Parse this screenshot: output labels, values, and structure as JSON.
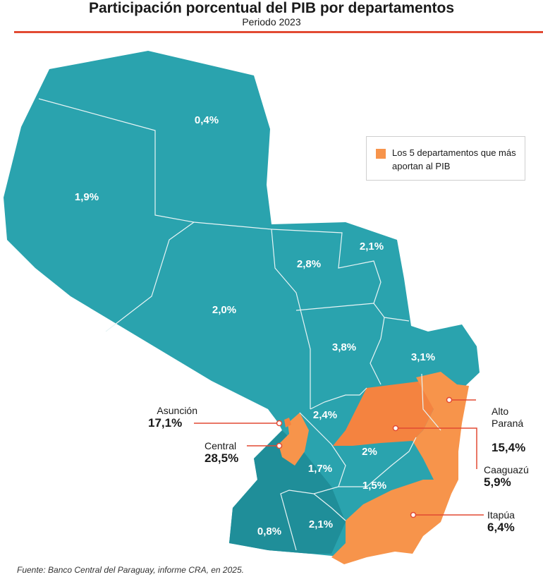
{
  "header": {
    "title": "Participación porcentual del PIB por departamentos",
    "subtitle": "Periodo 2023"
  },
  "legend": {
    "label": "Los 5 departamentos que más aportan al PIB",
    "color": "#f7944b"
  },
  "colors": {
    "base_teal": "#2aa3ae",
    "dark_teal": "#1f8e99",
    "highlight_orange": "#f7944b",
    "accent_red": "#e24a33"
  },
  "departments": {
    "alto_paraguay": "0,4%",
    "boqueron": "1,9%",
    "presidente_hayes": "2,0%",
    "concepcion": "2,8%",
    "amambay": "2,1%",
    "san_pedro": "3,8%",
    "canindeyu": "3,1%",
    "cordillera": "2,4%",
    "guaira": "2%",
    "paraguari": "1,7%",
    "caazapa": "1,5%",
    "neembucu": "0,8%",
    "misiones": "2,1%"
  },
  "callouts": {
    "asuncion": {
      "name": "Asunción",
      "value": "17,1%"
    },
    "central": {
      "name": "Central",
      "value": "28,5%"
    },
    "alto_parana": {
      "name": "Alto\nParaná",
      "value": "15,4%"
    },
    "caaguazu": {
      "name": "Caaguazú",
      "value": "5,9%"
    },
    "itapua": {
      "name": "Itapúa",
      "value": "6,4%"
    }
  },
  "source": "Fuente: Banco Central del Paraguay, informe CRA, en 2025."
}
